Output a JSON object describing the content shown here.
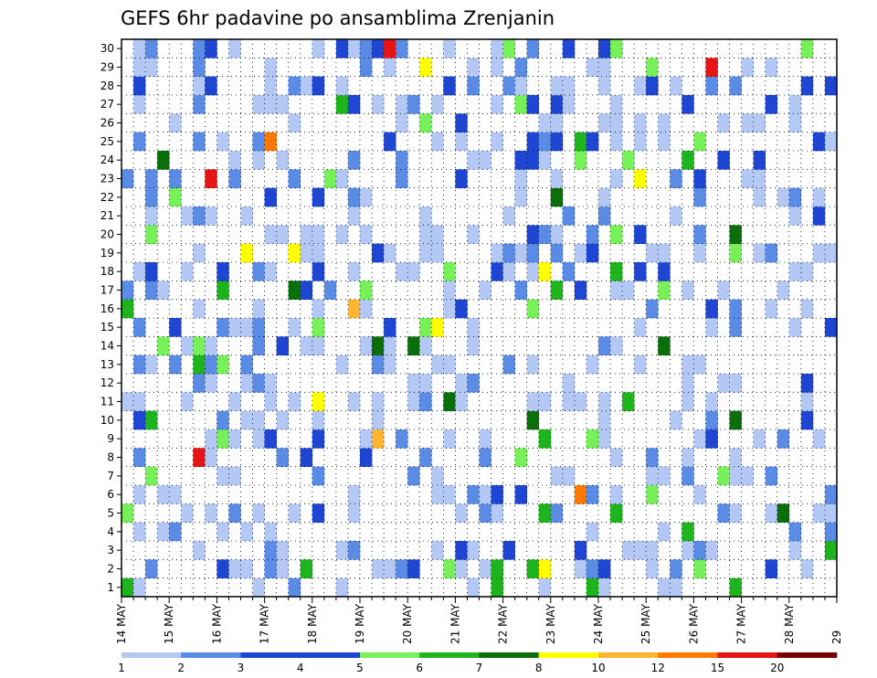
{
  "chart_data": {
    "type": "heatmap",
    "title": "GEFS 6hr padavine po ansamblima Zrenjanin",
    "x_ticks": [
      "14 MAY",
      "15 MAY",
      "16 MAY",
      "17 MAY",
      "18 MAY",
      "19 MAY",
      "20 MAY",
      "21 MAY",
      "22 MAY",
      "23 MAY",
      "24 MAY",
      "25 MAY",
      "26 MAY",
      "27 MAY",
      "28 MAY",
      "29"
    ],
    "y_ticks": [
      "1",
      "2",
      "3",
      "4",
      "5",
      "6",
      "7",
      "8",
      "9",
      "10",
      "11",
      "12",
      "13",
      "14",
      "15",
      "16",
      "17",
      "18",
      "19",
      "20",
      "21",
      "22",
      "23",
      "24",
      "25",
      "26",
      "27",
      "28",
      "29",
      "30"
    ],
    "xlim": [
      "14 MAY 00Z",
      "29 MAY 00Z"
    ],
    "ylim": [
      0,
      30
    ],
    "grid": true,
    "steps_per_day": 4,
    "colorbar": {
      "levels": [
        "1",
        "2",
        "3",
        "4",
        "5",
        "6",
        "7",
        "8",
        "10",
        "12",
        "15",
        "20"
      ],
      "colors": [
        "#b4c8f5",
        "#5a8ce6",
        "#1e46d2",
        "#1e46d2",
        "#78f05a",
        "#1eb41e",
        "#0a6e0a",
        "#ffff00",
        "#ffb432",
        "#ff7800",
        "#e61414",
        "#780000"
      ]
    },
    "ensemble_cells": {
      "r1": [
        [
          7,
          1
        ],
        [
          8,
          2
        ],
        [
          19,
          6
        ],
        [
          35,
          1
        ],
        [
          39,
          1
        ],
        [
          40,
          1
        ],
        [
          53,
          1
        ],
        [
          54,
          1
        ],
        [
          57,
          1
        ],
        [
          62,
          1
        ],
        [
          63,
          1
        ],
        [
          68,
          1
        ],
        [
          69,
          1
        ],
        [
          77,
          1
        ],
        [
          78,
          1
        ],
        [
          80,
          1
        ],
        [
          81,
          1
        ],
        [
          82,
          1
        ],
        [
          87,
          1
        ],
        [
          88,
          1
        ],
        [
          89,
          1
        ],
        [
          90,
          1
        ],
        [
          91,
          1
        ],
        [
          95,
          1
        ],
        [
          96,
          1
        ],
        [
          104,
          1
        ],
        [
          110,
          1
        ],
        [
          114,
          1
        ],
        [
          116,
          1
        ],
        [
          119,
          1
        ],
        [
          128,
          1
        ],
        [
          132,
          1
        ],
        [
          135,
          1
        ],
        [
          140,
          1
        ],
        [
          141,
          1
        ],
        [
          144,
          1
        ],
        [
          146,
          1
        ],
        [
          152,
          1
        ],
        [
          154,
          1
        ],
        [
          159,
          1
        ],
        [
          165,
          1
        ],
        [
          168,
          1
        ],
        [
          171,
          1
        ],
        [
          174,
          1
        ],
        [
          175,
          1
        ],
        [
          176,
          1
        ],
        [
          183,
          1
        ],
        [
          188,
          1
        ],
        [
          191,
          1
        ],
        [
          193,
          1
        ],
        [
          194,
          1
        ],
        [
          196,
          1
        ],
        [
          198,
          1
        ],
        [
          200,
          1
        ],
        [
          205,
          1
        ],
        [
          208,
          1
        ],
        [
          210,
          1
        ],
        [
          212,
          1
        ],
        [
          214,
          1
        ],
        [
          216,
          1
        ],
        [
          220,
          1
        ],
        [
          222,
          1
        ],
        [
          227,
          1
        ],
        [
          231,
          1
        ],
        [
          232,
          1
        ],
        [
          235,
          1
        ],
        [
          238,
          1
        ],
        [
          241,
          1
        ],
        [
          244,
          1
        ],
        [
          248,
          1
        ],
        [
          250,
          1
        ],
        [
          257,
          1
        ],
        [
          259,
          1
        ],
        [
          261,
          1
        ],
        [
          263,
          1
        ],
        [
          269,
          1
        ],
        [
          271,
          1
        ],
        [
          280,
          1
        ],
        [
          281,
          1
        ],
        [
          284,
          1
        ],
        [
          285,
          1
        ],
        [
          292,
          1
        ],
        [
          293,
          1
        ],
        [
          295,
          1
        ],
        [
          296,
          1
        ],
        [
          299,
          1
        ],
        [
          302,
          1
        ],
        [
          305,
          1
        ],
        [
          307,
          1
        ],
        [
          309,
          1
        ],
        [
          315,
          1
        ],
        [
          317,
          1
        ],
        [
          318,
          1
        ],
        [
          321,
          1
        ],
        [
          323,
          1
        ],
        [
          328,
          1
        ],
        [
          330,
          1
        ],
        [
          335,
          1
        ],
        [
          338,
          1
        ],
        [
          339,
          1
        ],
        [
          343,
          1
        ],
        [
          346,
          1
        ],
        [
          351,
          1
        ],
        [
          352,
          1
        ],
        [
          355,
          1
        ],
        [
          360,
          1
        ],
        [
          364,
          1
        ],
        [
          367,
          1
        ],
        [
          370,
          1
        ],
        [
          375,
          1
        ],
        [
          380,
          1
        ],
        [
          381,
          1
        ],
        [
          386,
          1
        ],
        [
          392,
          1
        ],
        [
          393,
          1
        ],
        [
          397,
          1
        ],
        [
          400,
          1
        ],
        [
          403,
          1
        ],
        [
          406,
          1
        ],
        [
          409,
          1
        ],
        [
          413,
          1
        ],
        [
          414,
          1
        ],
        [
          418,
          1
        ],
        [
          419,
          1
        ],
        [
          420,
          1
        ],
        [
          421,
          1
        ],
        [
          427,
          1
        ],
        [
          430,
          1
        ],
        [
          433,
          1
        ],
        [
          435,
          1
        ],
        [
          438,
          1
        ],
        [
          441,
          1
        ],
        [
          446,
          1
        ],
        [
          447,
          1
        ],
        [
          452,
          1
        ],
        [
          456,
          1
        ],
        [
          458,
          1
        ],
        [
          461,
          1
        ],
        [
          465,
          1
        ],
        [
          466,
          1
        ],
        [
          470,
          1
        ],
        [
          472,
          1
        ],
        [
          478,
          1
        ],
        [
          481,
          1
        ],
        [
          484,
          1
        ],
        [
          486,
          1
        ],
        [
          489,
          1
        ],
        [
          494,
          1
        ],
        [
          496,
          1
        ],
        [
          499,
          1
        ],
        [
          505,
          1
        ],
        [
          510,
          1
        ],
        [
          513,
          1
        ],
        [
          516,
          1
        ],
        [
          520,
          1
        ],
        [
          524,
          1
        ],
        [
          527,
          1
        ],
        [
          532,
          1
        ],
        [
          535,
          1
        ],
        [
          539,
          1
        ],
        [
          541,
          1
        ],
        [
          545,
          1
        ],
        [
          548,
          1
        ],
        [
          550,
          1
        ],
        [
          553,
          1
        ],
        [
          556,
          1
        ],
        [
          558,
          1
        ],
        [
          562,
          1
        ],
        [
          565,
          1
        ],
        [
          570,
          1
        ],
        [
          572,
          1
        ],
        [
          577,
          1
        ],
        [
          581,
          1
        ],
        [
          584,
          1
        ],
        [
          587,
          1
        ],
        [
          592,
          1
        ],
        [
          595,
          1
        ],
        [
          598,
          1
        ],
        [
          601,
          1
        ],
        [
          604,
          1
        ],
        [
          609,
          1
        ],
        [
          613,
          1
        ],
        [
          617,
          1
        ],
        [
          620,
          1
        ],
        [
          625,
          1
        ],
        [
          627,
          1
        ],
        [
          632,
          1
        ],
        [
          636,
          1
        ],
        [
          640,
          1
        ],
        [
          643,
          1
        ],
        [
          649,
          1
        ],
        [
          652,
          1
        ],
        [
          656,
          1
        ],
        [
          658,
          1
        ],
        [
          663,
          1
        ],
        [
          667,
          1
        ],
        [
          672,
          1
        ],
        [
          676,
          1
        ],
        [
          681,
          1
        ],
        [
          685,
          1
        ],
        [
          690,
          1
        ],
        [
          694,
          1
        ],
        [
          698,
          1
        ],
        [
          703,
          1
        ],
        [
          706,
          1
        ],
        [
          712,
          1
        ],
        [
          717,
          1
        ],
        [
          720,
          1
        ],
        [
          725,
          1
        ],
        [
          729,
          1
        ],
        [
          735,
          1
        ],
        [
          739,
          1
        ],
        [
          745,
          1
        ],
        [
          748,
          1
        ],
        [
          753,
          1
        ],
        [
          758,
          1
        ],
        [
          762,
          1
        ],
        [
          767,
          1
        ],
        [
          771,
          1
        ],
        [
          776,
          1
        ],
        [
          780,
          1
        ],
        [
          785,
          1
        ],
        [
          790,
          1
        ],
        [
          795,
          1
        ],
        [
          799,
          1
        ],
        [
          804,
          1
        ],
        [
          808,
          1
        ],
        [
          813,
          1
        ],
        [
          818,
          1
        ],
        [
          823,
          1
        ],
        [
          828,
          1
        ],
        [
          832,
          1
        ],
        [
          837,
          1
        ],
        [
          842,
          1
        ],
        [
          847,
          1
        ],
        [
          852,
          1
        ],
        [
          857,
          1
        ],
        [
          861,
          1
        ],
        [
          866,
          1
        ],
        [
          871,
          1
        ],
        [
          876,
          1
        ],
        [
          881,
          1
        ],
        [
          886,
          1
        ],
        [
          891,
          1
        ],
        [
          896,
          1
        ],
        [
          901,
          1
        ],
        [
          906,
          1
        ]
      ]
    }
  }
}
